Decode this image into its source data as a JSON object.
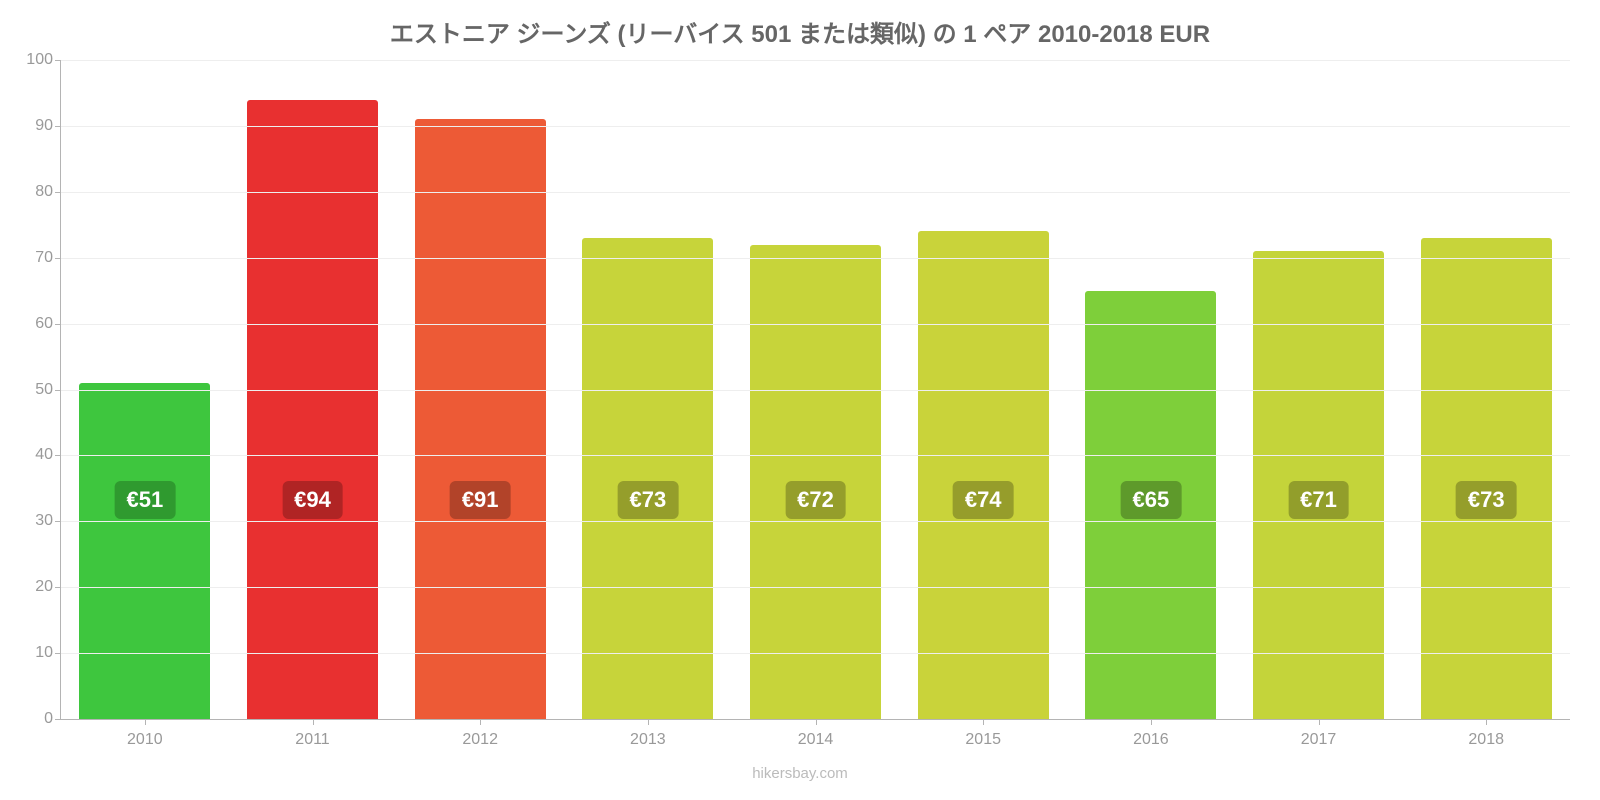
{
  "chart": {
    "type": "bar",
    "title": "エストニア ジーンズ (リーバイス 501 または類似) の 1 ペア 2010-2018 EUR",
    "title_fontsize": 24,
    "title_color": "#666666",
    "background_color": "#ffffff",
    "axis_color": "#b4b4b4",
    "grid_color": "#eeeeee",
    "tick_label_color": "#999999",
    "tick_fontsize": 16,
    "ylim_min": 0,
    "ylim_max": 100,
    "ytick_step": 10,
    "bar_width_ratio": 0.78,
    "value_prefix": "€",
    "badge_fontsize": 22,
    "badge_text_color": "#ffffff",
    "data": [
      {
        "year": "2010",
        "value": 51,
        "bar_color": "#3ec63e",
        "badge_color": "#2f9a2f"
      },
      {
        "year": "2011",
        "value": 94,
        "bar_color": "#e83030",
        "badge_color": "#b02424"
      },
      {
        "year": "2012",
        "value": 91,
        "bar_color": "#ed5a36",
        "badge_color": "#b24329"
      },
      {
        "year": "2013",
        "value": 73,
        "bar_color": "#c7d43a",
        "badge_color": "#959e2b"
      },
      {
        "year": "2014",
        "value": 72,
        "bar_color": "#c7d43a",
        "badge_color": "#959e2b"
      },
      {
        "year": "2015",
        "value": 74,
        "bar_color": "#c9d33a",
        "badge_color": "#969d2b"
      },
      {
        "year": "2016",
        "value": 65,
        "bar_color": "#7ecf3a",
        "badge_color": "#5e9a2b"
      },
      {
        "year": "2017",
        "value": 71,
        "bar_color": "#c4d43a",
        "badge_color": "#929e2b"
      },
      {
        "year": "2018",
        "value": 73,
        "bar_color": "#c7d43a",
        "badge_color": "#959e2b"
      }
    ],
    "attribution": "hikersbay.com",
    "attribution_fontsize": 15,
    "attribution_color": "#bbbbbb",
    "badge_offset_from_axis_value": 33
  }
}
